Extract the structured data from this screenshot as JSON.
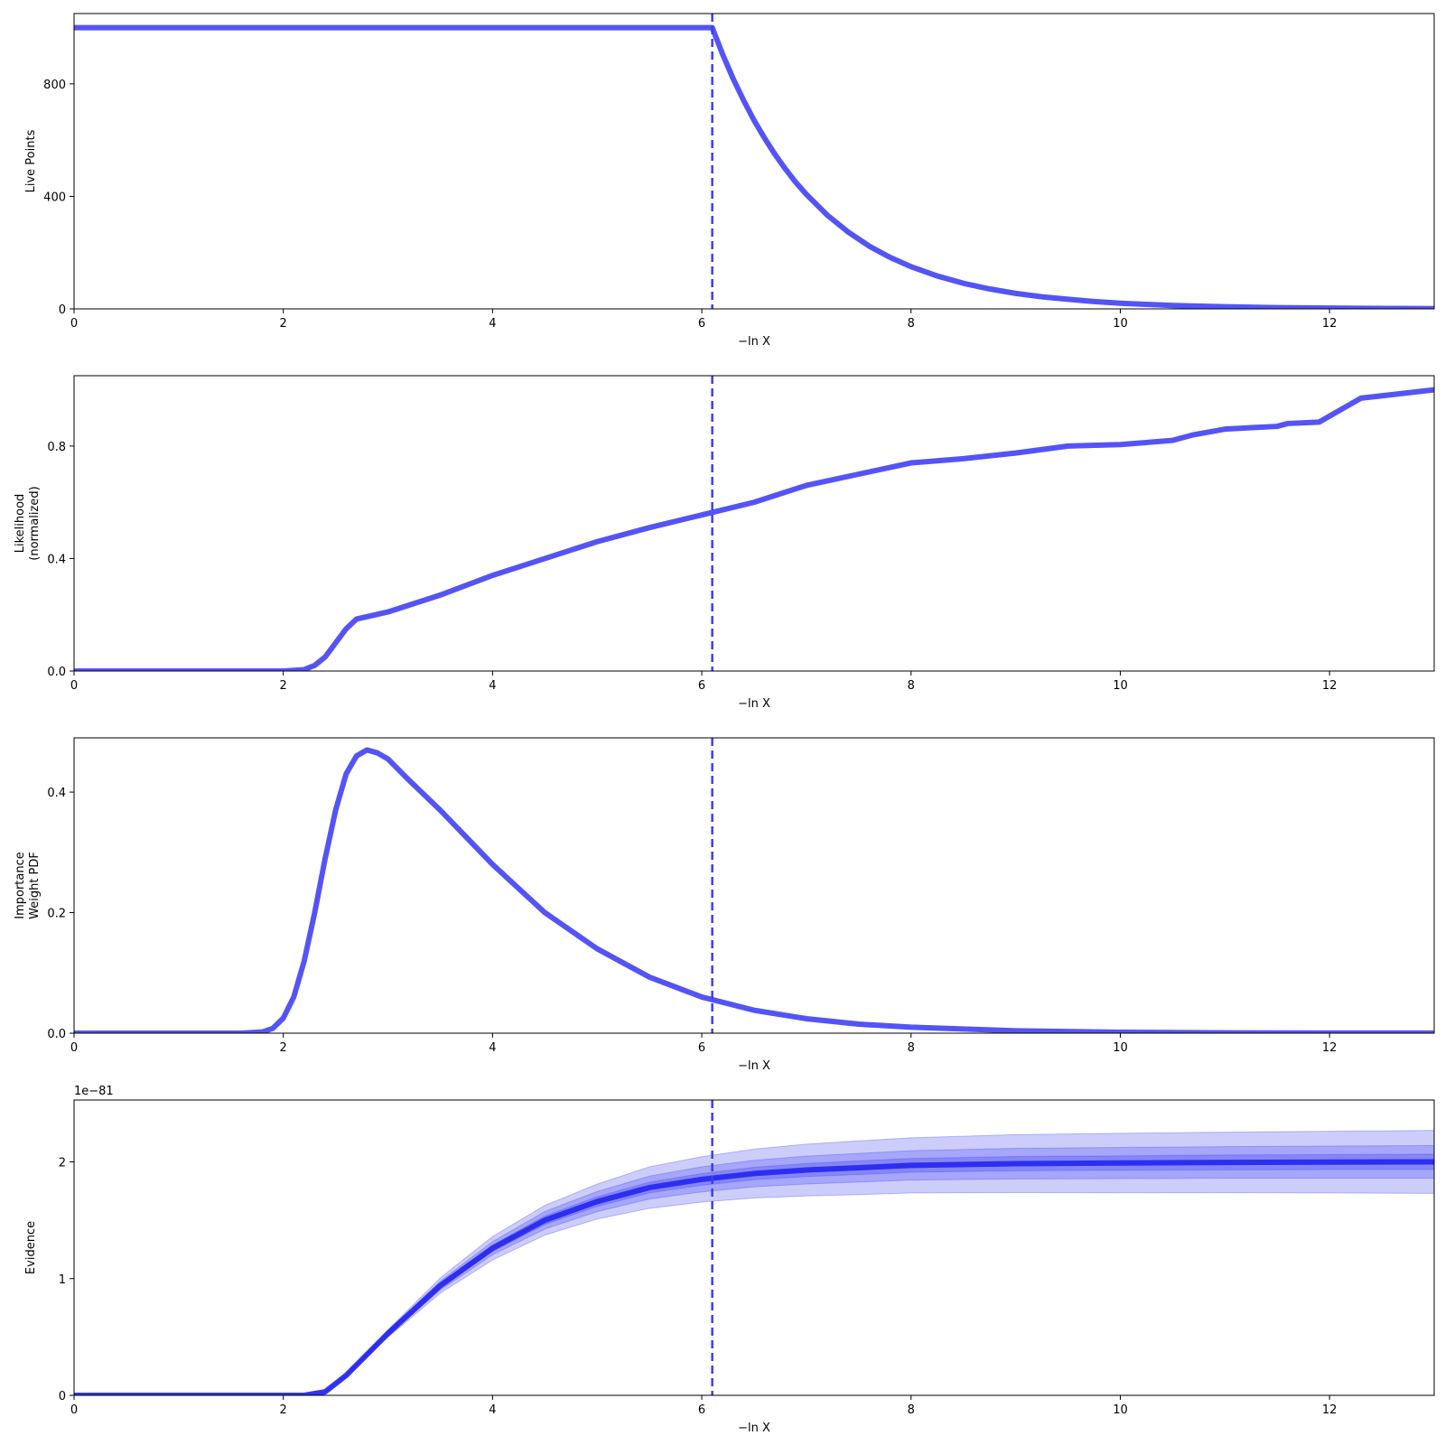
{
  "chart_data": [
    {
      "type": "line",
      "xlabel": "−ln X",
      "ylabel": "Live Points",
      "xlim": [
        0,
        13
      ],
      "ylim": [
        0,
        1050
      ],
      "xticks": [
        0,
        2,
        4,
        6,
        8,
        10,
        12
      ],
      "xtick_labels": [
        "0",
        "2",
        "4",
        "6",
        "8",
        "10",
        "12"
      ],
      "yticks": [
        0,
        400,
        800
      ],
      "ytick_labels": [
        "0",
        "400",
        "800"
      ],
      "vline_x": 6.1,
      "series": [
        {
          "color": "#4b4bf5",
          "x": [
            0,
            6.1,
            6.2,
            6.3,
            6.4,
            6.5,
            6.6,
            6.7,
            6.8,
            6.9,
            7.0,
            7.2,
            7.4,
            7.6,
            7.8,
            8.0,
            8.25,
            8.5,
            8.75,
            9.0,
            9.25,
            9.5,
            9.75,
            10.0,
            10.5,
            11.0,
            11.5,
            12.0,
            12.5,
            13.0
          ],
          "y": [
            1000,
            1000,
            904,
            818,
            741,
            670,
            607,
            549,
            497,
            449,
            407,
            333,
            273,
            223,
            183,
            150,
            117,
            91,
            71,
            55,
            43,
            34,
            26,
            20,
            12,
            7.5,
            4.5,
            2.8,
            1.7,
            1.0
          ]
        }
      ]
    },
    {
      "type": "line",
      "xlabel": "−ln X",
      "ylabel": [
        "Likelihood",
        "(normalized)"
      ],
      "xlim": [
        0,
        13
      ],
      "ylim": [
        0,
        1.05
      ],
      "xticks": [
        0,
        2,
        4,
        6,
        8,
        10,
        12
      ],
      "xtick_labels": [
        "0",
        "2",
        "4",
        "6",
        "8",
        "10",
        "12"
      ],
      "yticks": [
        0,
        0.4,
        0.8
      ],
      "ytick_labels": [
        "0.0",
        "0.4",
        "0.8"
      ],
      "vline_x": 6.1,
      "series": [
        {
          "color": "#4b4bf5",
          "x": [
            0,
            2.0,
            2.2,
            2.3,
            2.4,
            2.5,
            2.6,
            2.7,
            3.0,
            3.5,
            4.0,
            4.5,
            5.0,
            5.5,
            6.0,
            6.5,
            7.0,
            7.5,
            8.0,
            8.5,
            9.0,
            9.5,
            10.0,
            10.5,
            10.6,
            10.7,
            11.0,
            11.5,
            11.6,
            11.9,
            12.3,
            13.0
          ],
          "y": [
            0,
            0,
            0.005,
            0.02,
            0.05,
            0.1,
            0.15,
            0.185,
            0.21,
            0.27,
            0.34,
            0.4,
            0.46,
            0.51,
            0.555,
            0.6,
            0.66,
            0.7,
            0.74,
            0.755,
            0.775,
            0.8,
            0.805,
            0.82,
            0.83,
            0.84,
            0.86,
            0.87,
            0.88,
            0.885,
            0.97,
            1.0
          ]
        }
      ]
    },
    {
      "type": "line",
      "xlabel": "−ln X",
      "ylabel": [
        "Importance",
        "Weight PDF"
      ],
      "xlim": [
        0,
        13
      ],
      "ylim": [
        0,
        0.49
      ],
      "xticks": [
        0,
        2,
        4,
        6,
        8,
        10,
        12
      ],
      "xtick_labels": [
        "0",
        "2",
        "4",
        "6",
        "8",
        "10",
        "12"
      ],
      "yticks": [
        0,
        0.2,
        0.4
      ],
      "ytick_labels": [
        "0.0",
        "0.2",
        "0.4"
      ],
      "vline_x": 6.1,
      "series": [
        {
          "color": "#4b4bf5",
          "x": [
            0,
            1.6,
            1.8,
            1.9,
            2.0,
            2.1,
            2.2,
            2.3,
            2.4,
            2.5,
            2.6,
            2.7,
            2.8,
            2.9,
            3.0,
            3.2,
            3.5,
            4.0,
            4.5,
            5.0,
            5.5,
            6.0,
            6.5,
            7.0,
            7.5,
            8.0,
            9.0,
            10.0,
            11.0,
            12.0,
            13.0
          ],
          "y": [
            0,
            0,
            0.002,
            0.008,
            0.025,
            0.06,
            0.12,
            0.2,
            0.29,
            0.37,
            0.43,
            0.46,
            0.47,
            0.465,
            0.455,
            0.42,
            0.37,
            0.28,
            0.2,
            0.14,
            0.093,
            0.06,
            0.038,
            0.024,
            0.015,
            0.01,
            0.004,
            0.0015,
            0.0006,
            0.0002,
            0.0001
          ]
        }
      ]
    },
    {
      "type": "line",
      "xlabel": "−ln X",
      "ylabel": "Evidence",
      "offset_text": "1e−81",
      "xlim": [
        0,
        13
      ],
      "ylim": [
        0,
        2.53
      ],
      "xticks": [
        0,
        2,
        4,
        6,
        8,
        10,
        12
      ],
      "xtick_labels": [
        "0",
        "2",
        "4",
        "6",
        "8",
        "10",
        "12"
      ],
      "yticks": [
        0,
        1,
        2
      ],
      "ytick_labels": [
        "0",
        "1",
        "2"
      ],
      "vline_x": 6.1,
      "series": [
        {
          "color": "#2929f0",
          "x": [
            0,
            2.2,
            2.4,
            2.6,
            2.8,
            3.0,
            3.5,
            4.0,
            4.5,
            5.0,
            5.5,
            6.0,
            6.5,
            7.0,
            7.5,
            8.0,
            9.0,
            10.0,
            11.0,
            12.0,
            13.0
          ],
          "y": [
            0,
            0,
            0.03,
            0.17,
            0.35,
            0.53,
            0.94,
            1.26,
            1.5,
            1.66,
            1.78,
            1.85,
            1.9,
            1.93,
            1.95,
            1.97,
            1.985,
            1.99,
            1.995,
            1.998,
            2.0
          ]
        }
      ],
      "bands": [
        {
          "upper_scale": [
            1,
            1,
            1,
            1.035,
            1.05,
            1.06,
            1.07,
            1.08,
            1.085,
            1.09,
            1.1,
            1.105,
            1.11,
            1.115,
            1.118,
            1.12,
            1.125,
            1.128,
            1.13,
            1.132,
            1.135
          ],
          "lower_scale": [
            1,
            1,
            1,
            0.965,
            0.95,
            0.94,
            0.93,
            0.92,
            0.915,
            0.91,
            0.9,
            0.895,
            0.89,
            0.885,
            0.882,
            0.88,
            0.875,
            0.872,
            0.87,
            0.868,
            0.865
          ],
          "color": "#4b4bf5",
          "opacity": 0.28
        },
        {
          "upper_scale": [
            1,
            1,
            1,
            1.02,
            1.03,
            1.035,
            1.04,
            1.045,
            1.05,
            1.052,
            1.055,
            1.058,
            1.06,
            1.062,
            1.063,
            1.064,
            1.066,
            1.067,
            1.068,
            1.069,
            1.07
          ],
          "lower_scale": [
            1,
            1,
            1,
            0.98,
            0.97,
            0.965,
            0.96,
            0.955,
            0.95,
            0.948,
            0.945,
            0.942,
            0.94,
            0.938,
            0.937,
            0.936,
            0.934,
            0.933,
            0.932,
            0.931,
            0.93
          ],
          "color": "#4b4bf5",
          "opacity": 0.3
        },
        {
          "upper_scale": [
            1,
            1,
            1,
            1.01,
            1.015,
            1.018,
            1.02,
            1.022,
            1.024,
            1.025,
            1.026,
            1.027,
            1.028,
            1.029,
            1.03,
            1.03,
            1.031,
            1.031,
            1.032,
            1.032,
            1.033
          ],
          "lower_scale": [
            1,
            1,
            1,
            0.99,
            0.985,
            0.982,
            0.98,
            0.978,
            0.976,
            0.975,
            0.974,
            0.973,
            0.972,
            0.971,
            0.97,
            0.97,
            0.969,
            0.969,
            0.968,
            0.968,
            0.967
          ],
          "color": "#4b4bf5",
          "opacity": 0.35
        }
      ]
    }
  ]
}
